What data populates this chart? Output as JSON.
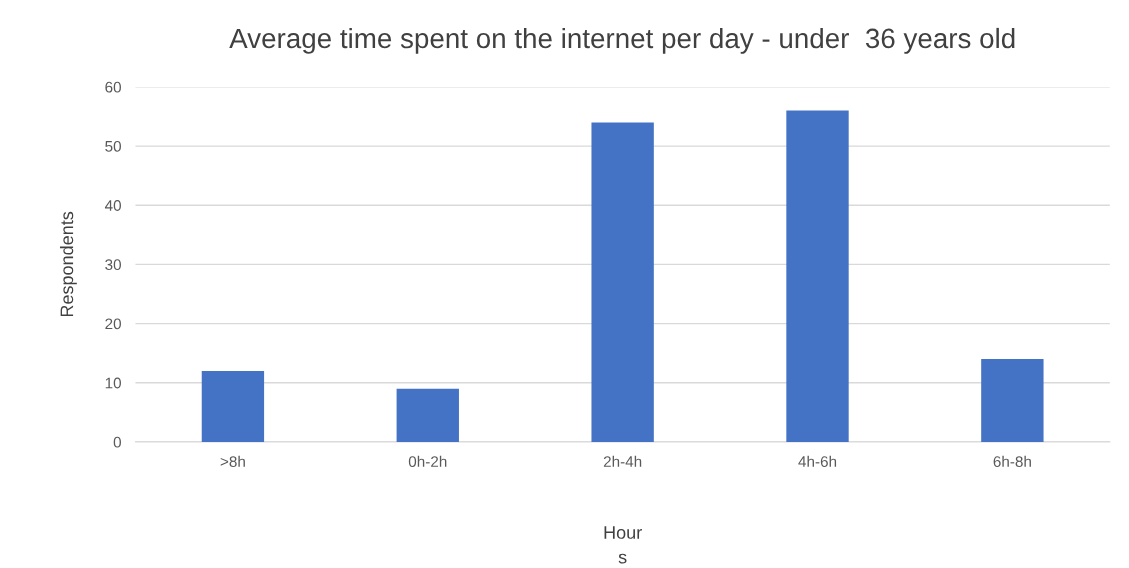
{
  "chart_data": {
    "type": "bar",
    "title": "Average time spent on the internet per day - under  36 years old",
    "xlabel": "Hour\ns",
    "ylabel": "Respondents",
    "categories": [
      ">8h",
      "0h-2h",
      "2h-4h",
      "4h-6h",
      "6h-8h"
    ],
    "values": [
      12,
      9,
      54,
      56,
      14
    ],
    "color": "#4472c4",
    "ylim": [
      0,
      60
    ],
    "yticks": [
      0,
      10,
      20,
      30,
      40,
      50,
      60
    ],
    "grid": "y",
    "legend": false
  }
}
